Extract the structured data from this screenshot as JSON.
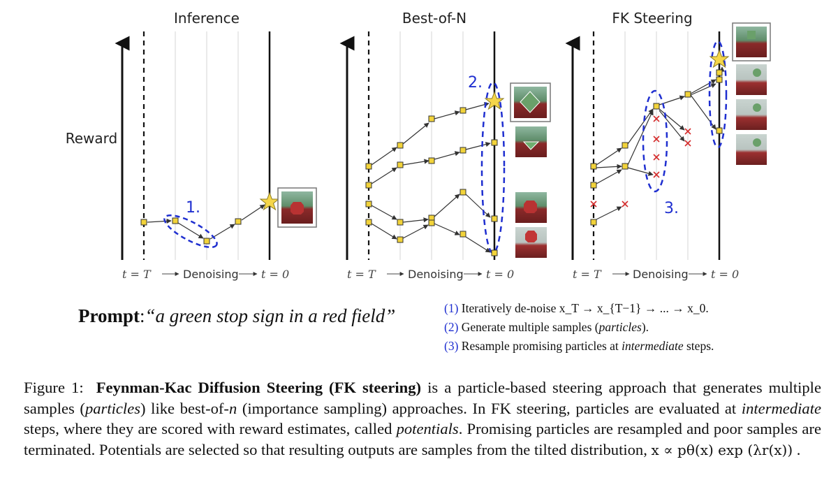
{
  "panels": {
    "inference_title": "Inference",
    "bestofn_title": "Best-of-N",
    "fk_title": "FK Steering",
    "y_axis_label": "Reward",
    "x_axis": {
      "start": "t = T",
      "middle": "Denoising",
      "end": "t = 0"
    },
    "annotations": [
      "1.",
      "2.",
      "3."
    ]
  },
  "prompt": {
    "label": "Prompt",
    "text": "“a green stop sign in a red field”"
  },
  "steps": {
    "s1_num": "(1)",
    "s1_text": "Iteratively de-noise x_T → x_{T−1} → ... → x_0.",
    "s2_num": "(2)",
    "s2_text_a": "Generate multiple samples (",
    "s2_text_em": "particles",
    "s2_text_b": ").",
    "s3_num": "(3)",
    "s3_text_a": "Resample promising particles at ",
    "s3_text_em": "intermediate",
    "s3_text_b": " steps."
  },
  "caption": {
    "fig_label": "Figure 1:",
    "bold_title": "Feynman-Kac Diffusion Steering (",
    "bold_fk": "FK",
    "bold_steering": " steering)",
    "t1": " is a particle-based steering approach that generates multiple samples (",
    "t1_em": "particles",
    "t2": ") like best-of-",
    "t2_em": "n",
    "t3": " (importance sampling) approaches. In ",
    "t3_sc": "FK",
    "t4": " steering, particles are evaluated at ",
    "t4_em": "intermediate",
    "t5": " steps, where they are scored with reward estimates, called ",
    "t5_em": "potentials",
    "t6": ". Promising particles are resampled and poor samples are terminated. Potentials are selected so that resulting outputs are samples from the tilted distribution, ",
    "formula": "x ∝ pθ(x) exp (λr(x))",
    "t7": " ."
  },
  "colors": {
    "node_fill": "#f2d33a",
    "node_stroke": "#333333",
    "annotation_blue": "#1f2fd0",
    "cross_red": "#d42b2b",
    "star_fill": "#f5d64a"
  },
  "icons": [
    "star-icon",
    "cross-icon",
    "stop-sign-thumbnail"
  ]
}
